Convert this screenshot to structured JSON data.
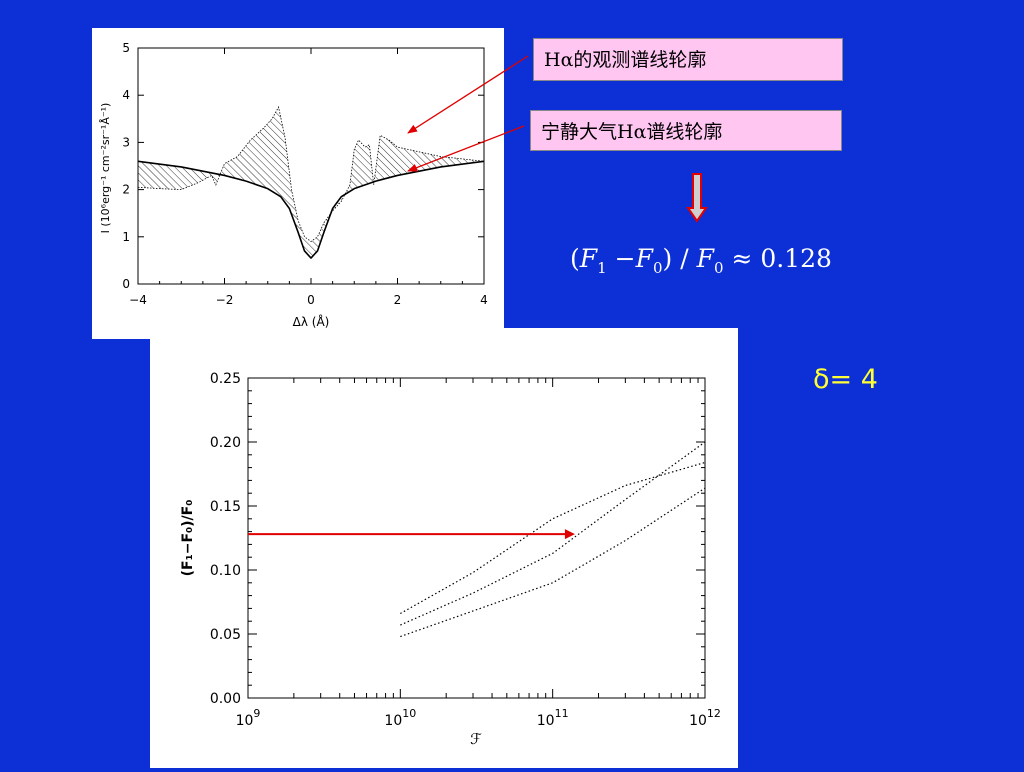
{
  "labels": {
    "observed": "Hα的观测谱线轮廓",
    "quiet": "宁静大气Hα谱线轮廓"
  },
  "formula": {
    "open": "(",
    "f": "F",
    "sub1": "1",
    "minus": " −",
    "sub0": "0",
    "close": ")",
    "slash": " / ",
    "approx": " ≈ ",
    "value": "0.128"
  },
  "delta": {
    "text": "δ= 4"
  },
  "colors": {
    "background": "#0c2fd6",
    "label_fill": "#ffc6f2",
    "arrow": "#e00000",
    "formula_text": "#ffffff",
    "delta_text": "#ffff33"
  },
  "icons": {
    "down_arrow": "down-arrow-icon"
  },
  "chart_data": [
    {
      "type": "line",
      "title": "",
      "xlabel": "Δλ (Å)",
      "ylabel": "I (10⁶erg⁻¹ cm⁻²sr⁻¹Å⁻¹)",
      "xlim": [
        -4,
        4
      ],
      "ylim": [
        0,
        5
      ],
      "x_ticks": [
        -4,
        -2,
        0,
        2,
        4
      ],
      "x_tick_labels": [
        "−4",
        "−2",
        "0",
        "2",
        "4"
      ],
      "y_ticks": [
        0,
        1,
        2,
        3,
        4,
        5
      ],
      "y_tick_labels": [
        "0",
        "1",
        "2",
        "3",
        "4",
        "5"
      ],
      "grid": false,
      "series": [
        {
          "name": "宁静大气Hα谱线轮廓",
          "style": "solid",
          "x": [
            -4.0,
            -3.0,
            -2.0,
            -1.5,
            -1.0,
            -0.7,
            -0.5,
            -0.3,
            -0.15,
            0.0,
            0.15,
            0.3,
            0.5,
            0.7,
            1.0,
            1.5,
            2.0,
            3.0,
            4.0
          ],
          "y": [
            2.6,
            2.48,
            2.3,
            2.18,
            2.02,
            1.85,
            1.6,
            1.1,
            0.7,
            0.55,
            0.7,
            1.1,
            1.6,
            1.85,
            2.02,
            2.18,
            2.3,
            2.48,
            2.6
          ]
        },
        {
          "name": "Hα的观测谱线轮廓",
          "style": "hatched",
          "x": [
            -4.0,
            -3.5,
            -3.0,
            -2.6,
            -2.3,
            -2.2,
            -2.0,
            -1.7,
            -1.4,
            -1.1,
            -0.9,
            -0.75,
            -0.6,
            -0.45,
            -0.3,
            -0.15,
            0.0,
            0.15,
            0.3,
            0.5,
            0.7,
            0.9,
            1.0,
            1.1,
            1.25,
            1.35,
            1.45,
            1.6,
            1.8,
            2.0,
            2.5,
            3.0,
            3.5,
            4.0
          ],
          "y": [
            2.05,
            2.02,
            2.0,
            2.15,
            2.3,
            2.1,
            2.55,
            2.7,
            3.05,
            3.3,
            3.5,
            3.75,
            3.1,
            2.0,
            1.35,
            1.0,
            0.9,
            1.0,
            1.3,
            1.55,
            1.75,
            2.1,
            2.85,
            3.05,
            2.9,
            2.95,
            2.1,
            3.15,
            3.05,
            2.9,
            2.8,
            2.7,
            2.65,
            2.6
          ]
        }
      ]
    },
    {
      "type": "line",
      "title": "",
      "xlabel": "ℱ",
      "ylabel": "(F₁−F₀)/F₀",
      "x_scale": "log",
      "xlim": [
        1000000000.0,
        1000000000000.0
      ],
      "ylim": [
        0,
        0.25
      ],
      "x_tick_labels": [
        {
          "base": "10",
          "exp": "9"
        },
        {
          "base": "10",
          "exp": "10"
        },
        {
          "base": "10",
          "exp": "11"
        },
        {
          "base": "10",
          "exp": "12"
        }
      ],
      "y_ticks": [
        0,
        0.05,
        0.1,
        0.15,
        0.2,
        0.25
      ],
      "y_tick_labels": [
        "0.00",
        "0.05",
        "0.10",
        "0.15",
        "0.20",
        "0.25"
      ],
      "grid": false,
      "series": [
        {
          "style": "dotted",
          "x": [
            10000000000.0,
            30000000000.0,
            100000000000.0,
            300000000000.0,
            1000000000000.0
          ],
          "y": [
            0.066,
            0.098,
            0.14,
            0.166,
            0.184
          ]
        },
        {
          "style": "dotted",
          "x": [
            10000000000.0,
            30000000000.0,
            100000000000.0,
            300000000000.0,
            1000000000000.0
          ],
          "y": [
            0.057,
            0.082,
            0.113,
            0.155,
            0.2
          ]
        },
        {
          "style": "dotted",
          "x": [
            10000000000.0,
            30000000000.0,
            100000000000.0,
            300000000000.0,
            1000000000000.0
          ],
          "y": [
            0.048,
            0.068,
            0.09,
            0.123,
            0.164
          ]
        }
      ],
      "annotation": {
        "type": "arrow",
        "y": 0.128,
        "x_from": 1000000000.0,
        "x_to": 140000000000.0
      }
    }
  ]
}
